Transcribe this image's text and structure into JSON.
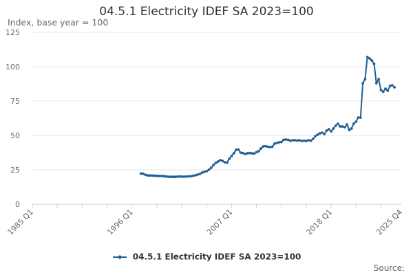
{
  "chart_data": {
    "type": "line",
    "title": "04.5.1 Electricity IDEF SA 2023=100",
    "ylabel": "Index, base year = 100",
    "xlabel": "",
    "ylim": [
      0,
      125
    ],
    "yticks": [
      0,
      25,
      50,
      75,
      100,
      125
    ],
    "xlim": [
      1985.0,
      2025.75
    ],
    "xticks": [
      {
        "label": "1985 Q1",
        "x": 1985.0
      },
      {
        "label": "1996 Q1",
        "x": 1996.0
      },
      {
        "label": "2007 Q1",
        "x": 2007.0
      },
      {
        "label": "2018 Q1",
        "x": 2018.0
      },
      {
        "label": "2025 Q4",
        "x": 2025.75
      }
    ],
    "grid": "horizontal",
    "legend_position": "bottom-center",
    "series": [
      {
        "name": "04.5.1 Electricity IDEF SA 2023=100",
        "color": "#206095",
        "points": [
          [
            1997.0,
            22.3
          ],
          [
            1997.25,
            22.1
          ],
          [
            1997.5,
            21.3
          ],
          [
            1997.75,
            20.9
          ],
          [
            1998.0,
            20.9
          ],
          [
            1998.25,
            20.8
          ],
          [
            1998.5,
            20.7
          ],
          [
            1998.75,
            20.6
          ],
          [
            1999.0,
            20.5
          ],
          [
            1999.25,
            20.5
          ],
          [
            1999.5,
            20.4
          ],
          [
            1999.75,
            20.2
          ],
          [
            2000.0,
            20.0
          ],
          [
            2000.25,
            19.9
          ],
          [
            2000.5,
            19.9
          ],
          [
            2000.75,
            19.9
          ],
          [
            2001.0,
            20.0
          ],
          [
            2001.25,
            20.1
          ],
          [
            2001.5,
            20.1
          ],
          [
            2001.75,
            20.0
          ],
          [
            2002.0,
            20.1
          ],
          [
            2002.25,
            20.2
          ],
          [
            2002.5,
            20.3
          ],
          [
            2002.75,
            20.6
          ],
          [
            2003.0,
            21.0
          ],
          [
            2003.25,
            21.5
          ],
          [
            2003.5,
            22.0
          ],
          [
            2003.75,
            23.0
          ],
          [
            2004.0,
            23.5
          ],
          [
            2004.25,
            24.0
          ],
          [
            2004.5,
            25.0
          ],
          [
            2004.75,
            26.5
          ],
          [
            2005.0,
            28.5
          ],
          [
            2005.25,
            30.0
          ],
          [
            2005.5,
            31.0
          ],
          [
            2005.75,
            32.0
          ],
          [
            2006.0,
            31.5
          ],
          [
            2006.25,
            30.5
          ],
          [
            2006.5,
            30.2
          ],
          [
            2006.75,
            33.0
          ],
          [
            2007.0,
            35.0
          ],
          [
            2007.25,
            37.0
          ],
          [
            2007.5,
            39.5
          ],
          [
            2007.75,
            39.8
          ],
          [
            2008.0,
            37.5
          ],
          [
            2008.25,
            37.2
          ],
          [
            2008.5,
            36.5
          ],
          [
            2008.75,
            37.0
          ],
          [
            2009.0,
            37.2
          ],
          [
            2009.25,
            37.0
          ],
          [
            2009.5,
            36.8
          ],
          [
            2009.75,
            37.8
          ],
          [
            2010.0,
            38.5
          ],
          [
            2010.25,
            40.5
          ],
          [
            2010.5,
            42.0
          ],
          [
            2010.75,
            42.2
          ],
          [
            2011.0,
            41.8
          ],
          [
            2011.25,
            41.5
          ],
          [
            2011.5,
            41.8
          ],
          [
            2011.75,
            44.0
          ],
          [
            2012.0,
            44.5
          ],
          [
            2012.25,
            45.0
          ],
          [
            2012.5,
            45.2
          ],
          [
            2012.75,
            46.8
          ],
          [
            2013.0,
            47.0
          ],
          [
            2013.25,
            46.8
          ],
          [
            2013.5,
            46.2
          ],
          [
            2013.75,
            46.5
          ],
          [
            2014.0,
            46.5
          ],
          [
            2014.25,
            46.3
          ],
          [
            2014.5,
            46.5
          ],
          [
            2014.75,
            46.0
          ],
          [
            2015.0,
            46.2
          ],
          [
            2015.25,
            46.0
          ],
          [
            2015.5,
            46.5
          ],
          [
            2015.75,
            46.2
          ],
          [
            2016.0,
            47.5
          ],
          [
            2016.25,
            49.5
          ],
          [
            2016.5,
            50.5
          ],
          [
            2016.75,
            51.5
          ],
          [
            2017.0,
            52.0
          ],
          [
            2017.25,
            51.0
          ],
          [
            2017.5,
            53.5
          ],
          [
            2017.75,
            54.5
          ],
          [
            2018.0,
            53.0
          ],
          [
            2018.25,
            55.0
          ],
          [
            2018.5,
            57.0
          ],
          [
            2018.75,
            58.5
          ],
          [
            2019.0,
            56.5
          ],
          [
            2019.25,
            56.5
          ],
          [
            2019.5,
            56.0
          ],
          [
            2019.75,
            58.0
          ],
          [
            2020.0,
            54.0
          ],
          [
            2020.25,
            55.0
          ],
          [
            2020.5,
            58.5
          ],
          [
            2020.75,
            60.0
          ],
          [
            2021.0,
            63.0
          ],
          [
            2021.25,
            63.0
          ],
          [
            2021.5,
            88.0
          ],
          [
            2021.75,
            91.0
          ],
          [
            2022.0,
            107.0
          ],
          [
            2022.25,
            106.0
          ],
          [
            2022.5,
            104.5
          ],
          [
            2022.75,
            102.0
          ],
          [
            2023.0,
            88.0
          ],
          [
            2023.25,
            91.0
          ],
          [
            2023.5,
            83.0
          ],
          [
            2023.75,
            81.8
          ],
          [
            2024.0,
            84.0
          ],
          [
            2024.25,
            82.5
          ],
          [
            2024.5,
            86.0
          ],
          [
            2024.75,
            86.5
          ],
          [
            2025.0,
            85.0
          ]
        ]
      }
    ]
  },
  "source_label": "Source:"
}
